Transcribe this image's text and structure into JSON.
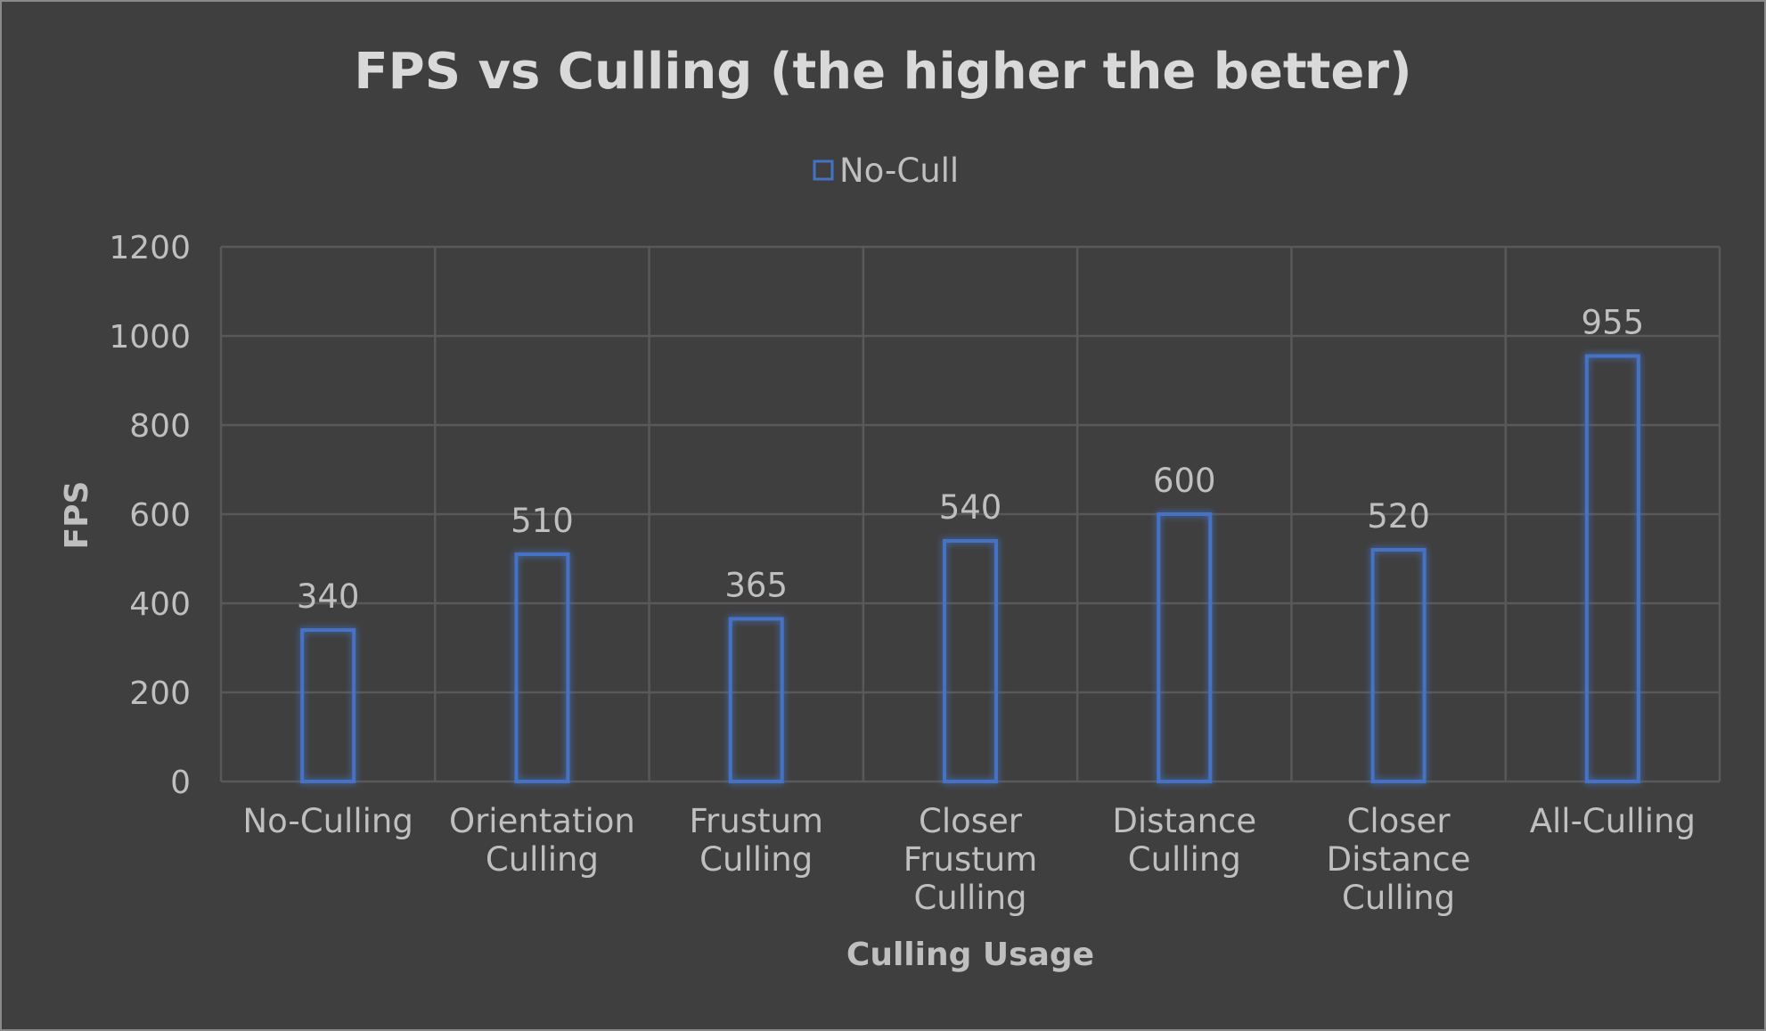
{
  "chart_data": {
    "type": "bar",
    "title": "FPS vs Culling (the higher the better)",
    "xlabel": "Culling Usage",
    "ylabel": "FPS",
    "categories": [
      [
        "No-Culling"
      ],
      [
        "Orientation",
        "Culling"
      ],
      [
        "Frustum",
        "Culling"
      ],
      [
        "Closer",
        "Frustum",
        "Culling"
      ],
      [
        "Distance",
        "Culling"
      ],
      [
        "Closer",
        "Distance",
        "Culling"
      ],
      [
        "All-Culling"
      ]
    ],
    "series": [
      {
        "name": "No-Cull",
        "values": [
          340,
          510,
          365,
          540,
          600,
          520,
          955
        ]
      }
    ],
    "ylim": [
      0,
      1200
    ],
    "yticks": [
      0,
      200,
      400,
      600,
      800,
      1000,
      1200
    ],
    "grid": true,
    "legend": "top",
    "colors": {
      "bar": "#4472c4",
      "background": "#3f3f3f",
      "grid": "#595959",
      "text": "#bfbfbf"
    }
  }
}
